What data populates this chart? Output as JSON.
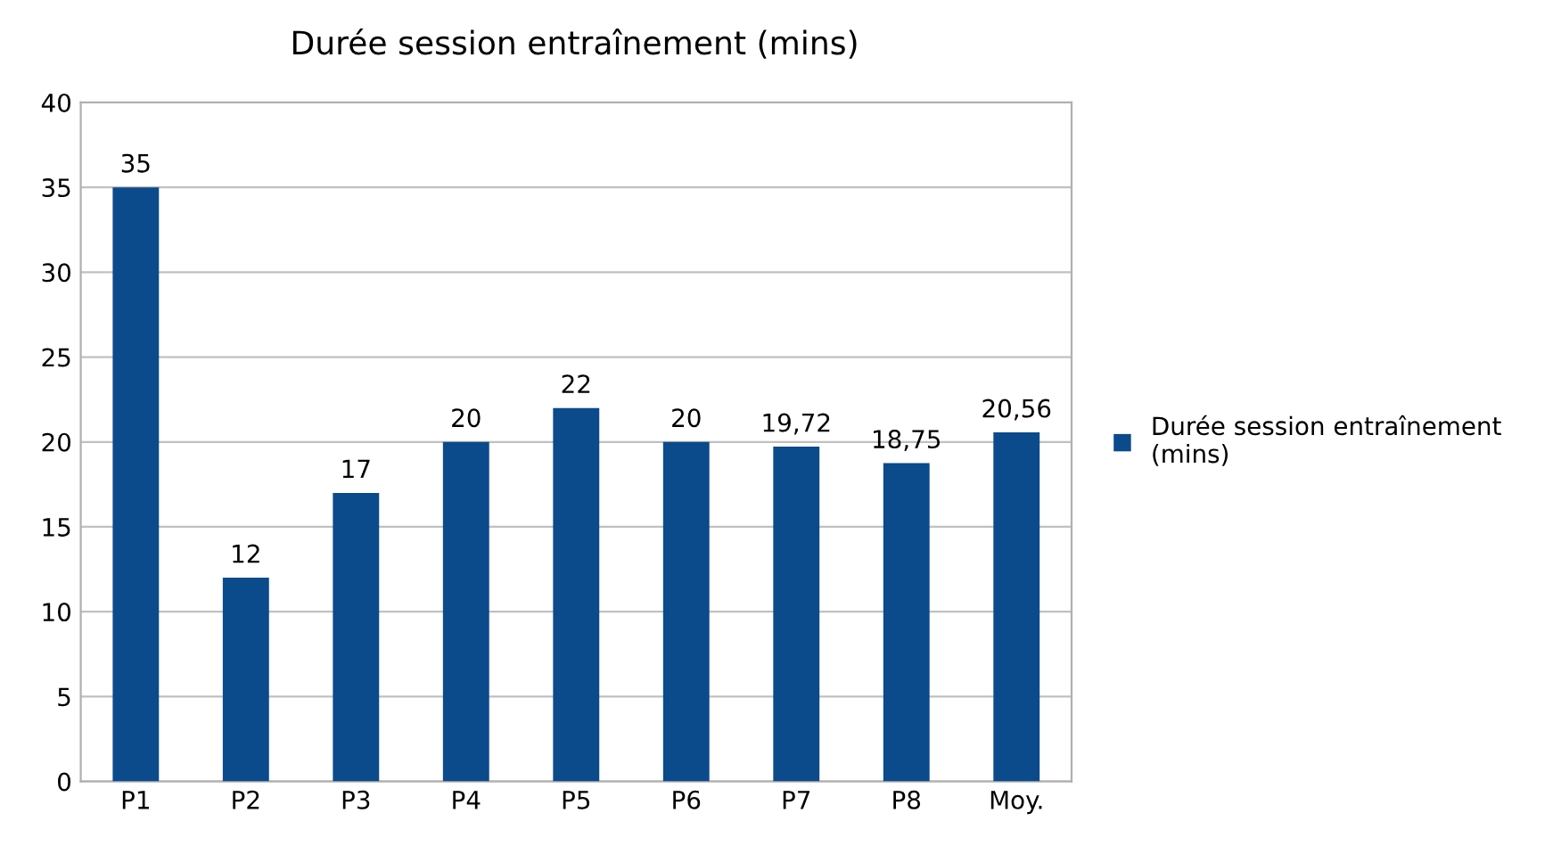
{
  "chart_data": {
    "type": "bar",
    "title": "Durée session entraînement (mins)",
    "categories": [
      "P1",
      "P2",
      "P3",
      "P4",
      "P5",
      "P6",
      "P7",
      "P8",
      "Moy."
    ],
    "series": [
      {
        "name": "Durée session entraînement (mins)",
        "color": "#0b4a8b",
        "values": [
          35,
          12,
          17,
          20,
          22,
          20,
          19.72,
          18.75,
          20.56
        ],
        "value_labels": [
          "35",
          "12",
          "17",
          "20",
          "22",
          "20",
          "19,72",
          "18,75",
          "20,56"
        ]
      }
    ],
    "ylim": [
      0,
      40
    ],
    "yticks": [
      0,
      5,
      10,
      15,
      20,
      25,
      30,
      35,
      40
    ],
    "grid": "y",
    "legend": "right"
  }
}
